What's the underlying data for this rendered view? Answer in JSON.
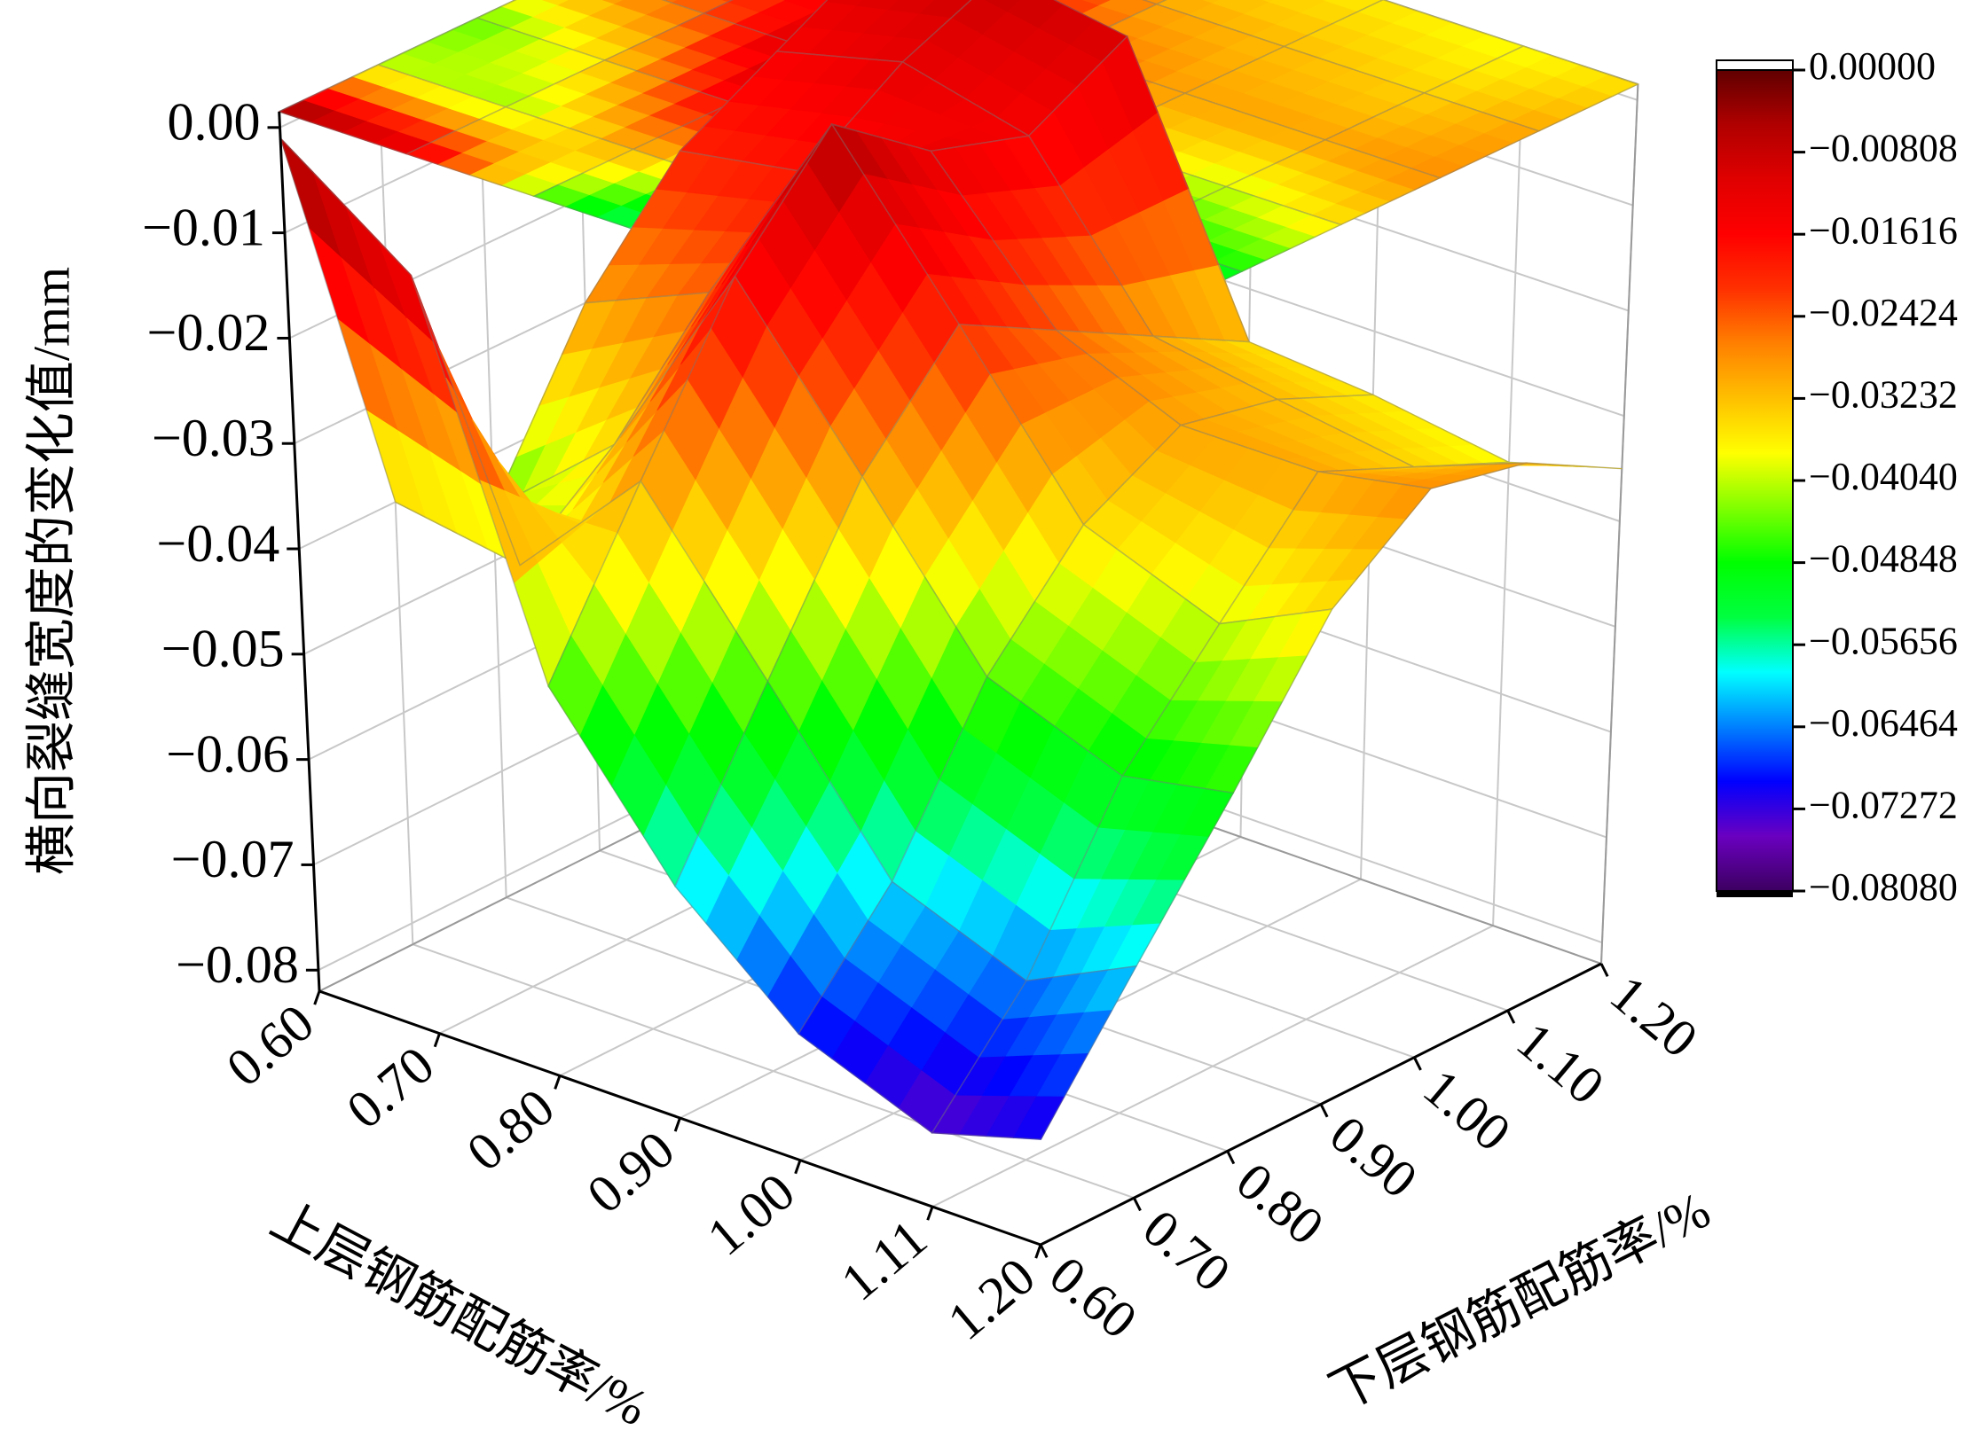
{
  "chart_data": {
    "type": "surface",
    "zlabel": "横向裂缝宽度的变化值/mm",
    "xlabel": "上层钢筋配筋率/%",
    "ylabel": "下层钢筋配筋率/%",
    "x": [
      0.6,
      0.7,
      0.8,
      0.9,
      1.0,
      1.11,
      1.2
    ],
    "y": [
      0.6,
      0.7,
      0.8,
      0.9,
      1.0,
      1.1,
      1.2
    ],
    "values": [
      [
        -0.001,
        -0.04,
        -0.045,
        -0.03,
        -0.02,
        -0.015,
        -0.01
      ],
      [
        -0.01,
        -0.042,
        -0.035,
        -0.025,
        -0.018,
        -0.012,
        -0.008
      ],
      [
        -0.045,
        -0.03,
        -0.015,
        -0.005,
        -0.012,
        -0.015,
        -0.01
      ],
      [
        -0.06,
        -0.045,
        -0.03,
        -0.02,
        -0.025,
        -0.03,
        -0.035
      ],
      [
        -0.07,
        -0.06,
        -0.045,
        -0.035,
        -0.03,
        -0.032,
        -0.036
      ],
      [
        -0.075,
        -0.065,
        -0.05,
        -0.04,
        -0.03,
        -0.034,
        -0.038
      ],
      [
        -0.072,
        -0.06,
        -0.048,
        -0.035,
        -0.028,
        -0.03,
        -0.035
      ]
    ],
    "xlim": [
      0.6,
      1.2
    ],
    "ylim": [
      0.6,
      1.2
    ],
    "zlim": [
      -0.082,
      0.0015
    ],
    "xticks": [
      {
        "value": 0.6,
        "label": "0.60"
      },
      {
        "value": 0.7,
        "label": "0.70"
      },
      {
        "value": 0.8,
        "label": "0.80"
      },
      {
        "value": 0.9,
        "label": "0.90"
      },
      {
        "value": 1.0,
        "label": "1.00"
      },
      {
        "value": 1.11,
        "label": "1.11"
      },
      {
        "value": 1.2,
        "label": "1.20"
      }
    ],
    "yticks": [
      {
        "value": 0.6,
        "label": "0.60"
      },
      {
        "value": 0.7,
        "label": "0.70"
      },
      {
        "value": 0.8,
        "label": "0.80"
      },
      {
        "value": 0.9,
        "label": "0.90"
      },
      {
        "value": 1.0,
        "label": "1.00"
      },
      {
        "value": 1.1,
        "label": "1.10"
      },
      {
        "value": 1.2,
        "label": "1.20"
      }
    ],
    "zticks": [
      {
        "value": 0,
        "label": "0.00"
      },
      {
        "value": -0.01,
        "label": "−0.01"
      },
      {
        "value": -0.02,
        "label": "−0.02"
      },
      {
        "value": -0.03,
        "label": "−0.03"
      },
      {
        "value": -0.04,
        "label": "−0.04"
      },
      {
        "value": -0.05,
        "label": "−0.05"
      },
      {
        "value": -0.06,
        "label": "−0.06"
      },
      {
        "value": -0.07,
        "label": "−0.07"
      },
      {
        "value": -0.08,
        "label": "−0.08"
      }
    ],
    "grid": true,
    "colorbar": {
      "clim": [
        -0.0808,
        0
      ],
      "ticks": [
        {
          "value": 0,
          "label": "0.00000"
        },
        {
          "value": -0.00808,
          "label": "−0.00808"
        },
        {
          "value": -0.01616,
          "label": "−0.01616"
        },
        {
          "value": -0.02424,
          "label": "−0.02424"
        },
        {
          "value": -0.03232,
          "label": "−0.03232"
        },
        {
          "value": -0.0404,
          "label": "−0.04040"
        },
        {
          "value": -0.04848,
          "label": "−0.04848"
        },
        {
          "value": -0.05656,
          "label": "−0.05656"
        },
        {
          "value": -0.06464,
          "label": "−0.06464"
        },
        {
          "value": -0.07272,
          "label": "−0.07272"
        },
        {
          "value": -0.0808,
          "label": "−0.08080"
        }
      ],
      "colormap": [
        "#3c0060",
        "#6a00c0",
        "#0000ff",
        "#0080ff",
        "#00ffff",
        "#00ff40",
        "#00ff00",
        "#80ff00",
        "#ffff00",
        "#ffc000",
        "#ff8000",
        "#ff3000",
        "#ff0000",
        "#e00000",
        "#b00000",
        "#600000"
      ]
    }
  }
}
